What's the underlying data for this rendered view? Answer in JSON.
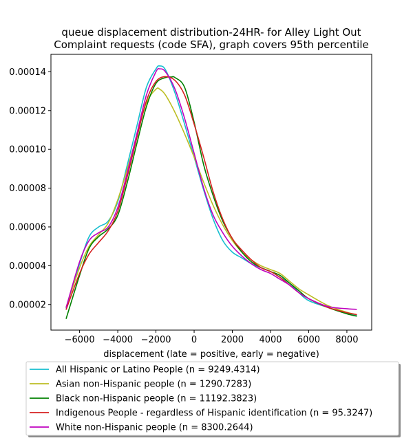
{
  "chart_data": {
    "type": "line",
    "title_lines": [
      "queue displacement distribution-24HR-  for Alley Light Out",
      "Complaint  requests (code SFA), graph covers 95th percentile"
    ],
    "xlabel": "displacement (late = positive, early = negative)",
    "ylabel": "",
    "xlim": [
      -7500,
      9300
    ],
    "ylim": [
      6.8e-06,
      0.000149
    ],
    "x_ticks": [
      -6000,
      -4000,
      -2000,
      0,
      2000,
      4000,
      6000,
      8000
    ],
    "x_tick_labels": [
      "−6000",
      "−4000",
      "−2000",
      "0",
      "2000",
      "4000",
      "6000",
      "8000"
    ],
    "y_ticks": [
      2e-05,
      4e-05,
      6e-05,
      8e-05,
      0.0001,
      0.00012,
      0.00014
    ],
    "y_tick_labels": [
      "0.00002",
      "0.00004",
      "0.00006",
      "0.00008",
      "0.00010",
      "0.00012",
      "0.00014"
    ],
    "grid": false,
    "legend_position": "below",
    "series": [
      {
        "name": "All Hispanic or Latino People (n = 9249.4314)",
        "color": "#17becf",
        "x": [
          -6700,
          -6000,
          -5500,
          -5000,
          -4500,
          -4000,
          -3500,
          -3000,
          -2500,
          -2000,
          -1800,
          -1500,
          -1000,
          -500,
          0,
          500,
          1000,
          1500,
          2000,
          2500,
          3000,
          3500,
          4000,
          4500,
          5000,
          5500,
          6000,
          7000,
          8000,
          8500
        ],
        "y": [
          1.82e-05,
          4.1e-05,
          5.5e-05,
          6e-05,
          6.3e-05,
          7.3e-05,
          9.2e-05,
          0.000112,
          0.000132,
          0.0001415,
          0.000143,
          0.000141,
          0.000129,
          0.000113,
          9.6e-05,
          7.9e-05,
          6.4e-05,
          5.3e-05,
          4.7e-05,
          4.4e-05,
          4.1e-05,
          3.9e-05,
          3.7e-05,
          3.4e-05,
          3.1e-05,
          2.6e-05,
          2.2e-05,
          1.85e-05,
          1.55e-05,
          1.45e-05
        ]
      },
      {
        "name": "Asian non-Hispanic people (n = 1290.7283)",
        "color": "#bcbd22",
        "x": [
          -6700,
          -6000,
          -5500,
          -5000,
          -4500,
          -4000,
          -3500,
          -3000,
          -2500,
          -2000,
          -1800,
          -1500,
          -1000,
          -500,
          0,
          500,
          1000,
          1500,
          2000,
          2500,
          3000,
          3500,
          4000,
          4500,
          5000,
          5500,
          6000,
          7000,
          8000,
          8500
        ],
        "y": [
          1.88e-05,
          3.9e-05,
          5e-05,
          5.6e-05,
          6.2e-05,
          7.4e-05,
          9e-05,
          0.000107,
          0.000124,
          0.000131,
          0.000131,
          0.000128,
          0.000119,
          0.000108,
          9.6e-05,
          8.3e-05,
          7.1e-05,
          6.1e-05,
          5.3e-05,
          4.7e-05,
          4.3e-05,
          4e-05,
          3.8e-05,
          3.6e-05,
          3.2e-05,
          2.8e-05,
          2.5e-05,
          1.95e-05,
          1.6e-05,
          1.48e-05
        ]
      },
      {
        "name": "Black non-Hispanic people (n = 11192.3823)",
        "color": "#008000",
        "x": [
          -6700,
          -6000,
          -5500,
          -5000,
          -4500,
          -4000,
          -3500,
          -3000,
          -2500,
          -2000,
          -1500,
          -1200,
          -1000,
          -500,
          0,
          500,
          1000,
          1500,
          2000,
          2500,
          3000,
          3500,
          4000,
          4500,
          5000,
          5500,
          6000,
          7000,
          8000,
          8500
        ],
        "y": [
          1.28e-05,
          3.5e-05,
          4.9e-05,
          5.5e-05,
          5.9e-05,
          6.6e-05,
          8.3e-05,
          0.000103,
          0.000122,
          0.000134,
          0.000137,
          0.0001373,
          0.000137,
          0.000132,
          0.000114,
          9.2e-05,
          7.6e-05,
          6.3e-05,
          5.4e-05,
          4.7e-05,
          4.2e-05,
          3.9e-05,
          3.7e-05,
          3.5e-05,
          3.1e-05,
          2.7e-05,
          2.3e-05,
          1.85e-05,
          1.52e-05,
          1.4e-05
        ]
      },
      {
        "name": "Indigenous People - regardless of Hispanic identification (n = 95.3247)",
        "color": "#d62020",
        "x": [
          -6700,
          -6000,
          -5500,
          -5000,
          -4500,
          -4000,
          -3500,
          -3000,
          -2500,
          -2000,
          -1500,
          -1000,
          -500,
          0,
          500,
          1000,
          1500,
          2000,
          2500,
          3000,
          3500,
          4000,
          4500,
          5000,
          5500,
          6000,
          7000,
          8000,
          8500
        ],
        "y": [
          1.75e-05,
          3.6e-05,
          4.6e-05,
          5.2e-05,
          5.8e-05,
          6.8e-05,
          8.6e-05,
          0.000106,
          0.000125,
          0.000135,
          0.0001375,
          0.0001355,
          0.000128,
          0.000113,
          9.6e-05,
          7.8e-05,
          6.4e-05,
          5.4e-05,
          4.8e-05,
          4.3e-05,
          3.9e-05,
          3.7e-05,
          3.4e-05,
          3e-05,
          2.6e-05,
          2.3e-05,
          1.85e-05,
          1.58e-05,
          1.48e-05
        ]
      },
      {
        "name": "White non-Hispanic people (n = 8300.2644)",
        "color": "#bf00bf",
        "x": [
          -6700,
          -6000,
          -5500,
          -5000,
          -4500,
          -4000,
          -3500,
          -3000,
          -2500,
          -2000,
          -1800,
          -1500,
          -1000,
          -500,
          0,
          500,
          1000,
          1500,
          2000,
          2500,
          3000,
          3500,
          4000,
          4500,
          5000,
          5500,
          6000,
          7000,
          8000,
          8500
        ],
        "y": [
          1.85e-05,
          4.2e-05,
          5.3e-05,
          5.7e-05,
          6e-05,
          7e-05,
          8.8e-05,
          0.000108,
          0.000128,
          0.00014,
          0.0001415,
          0.00014,
          0.000131,
          0.000116,
          9.8e-05,
          8e-05,
          6.6e-05,
          5.7e-05,
          5e-05,
          4.5e-05,
          4.1e-05,
          3.8e-05,
          3.6e-05,
          3.3e-05,
          3e-05,
          2.6e-05,
          2.3e-05,
          1.9e-05,
          1.78e-05,
          1.75e-05
        ]
      }
    ]
  }
}
